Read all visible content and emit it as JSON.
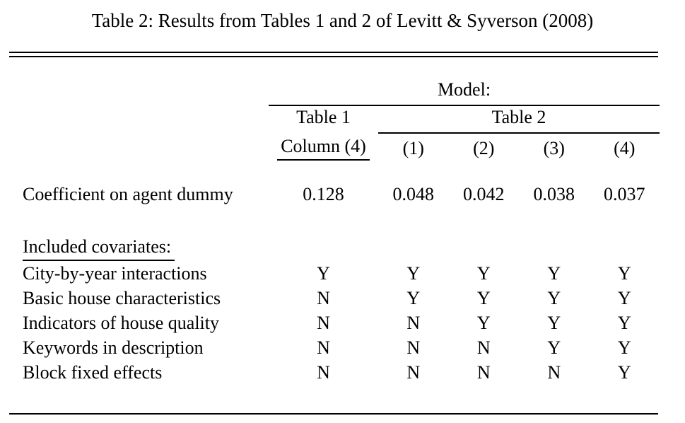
{
  "title": "Table 2: Results from Tables 1 and 2 of Levitt & Syverson (2008)",
  "colors": {
    "background": "#ffffff",
    "text": "#000000",
    "rule": "#000000"
  },
  "table": {
    "model_header": "Model:",
    "col_group_1": {
      "title": "Table 1",
      "subtitle": "Column (4)"
    },
    "col_group_2": {
      "title": "Table 2",
      "columns": [
        "(1)",
        "(2)",
        "(3)",
        "(4)"
      ]
    },
    "coefficient_row": {
      "label": "Coefficient on agent dummy",
      "values": [
        "0.128",
        "0.048",
        "0.042",
        "0.038",
        "0.037"
      ]
    },
    "covariates_section": {
      "header": "Included covariates:",
      "rows": [
        {
          "label": "City-by-year interactions",
          "values": [
            "Y",
            "Y",
            "Y",
            "Y",
            "Y"
          ]
        },
        {
          "label": "Basic house characteristics",
          "values": [
            "N",
            "Y",
            "Y",
            "Y",
            "Y"
          ]
        },
        {
          "label": "Indicators of house quality",
          "values": [
            "N",
            "N",
            "Y",
            "Y",
            "Y"
          ]
        },
        {
          "label": "Keywords in description",
          "values": [
            "N",
            "N",
            "N",
            "Y",
            "Y"
          ]
        },
        {
          "label": "Block fixed effects",
          "values": [
            "N",
            "N",
            "N",
            "N",
            "Y"
          ]
        }
      ]
    }
  }
}
